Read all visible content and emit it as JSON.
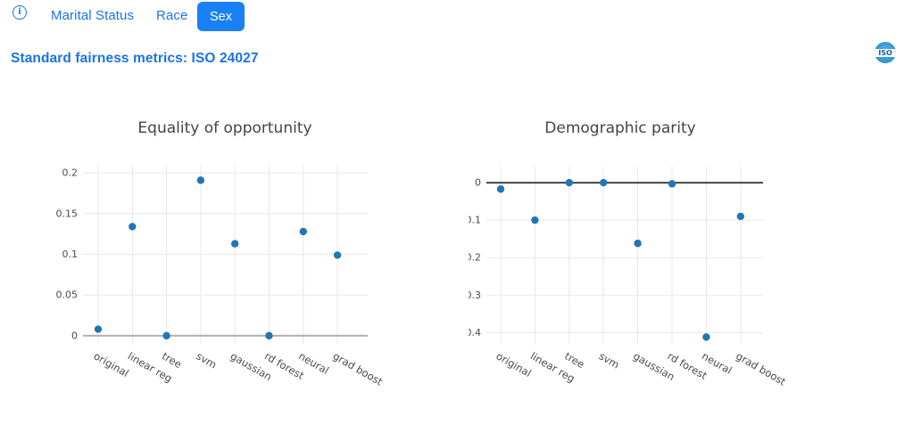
{
  "header": {
    "info_icon_glyph": "i",
    "tabs": [
      {
        "label": "Marital Status",
        "active": false
      },
      {
        "label": "Race",
        "active": false
      },
      {
        "label": "Sex",
        "active": true
      }
    ],
    "subtitle": "Standard fairness metrics: ISO 24027",
    "iso_logo": {
      "text": "ISO"
    }
  },
  "colors": {
    "accent_blue": "#1a73e8",
    "active_tab_bg": "#1a80f5",
    "marker": "#1f77b4",
    "grid": "#e8e8e8",
    "tick_label": "#4a4a4a",
    "title": "#444444"
  },
  "chart_data": [
    {
      "type": "scatter",
      "title": "Equality of opportunity",
      "categories": [
        "original",
        "linear reg",
        "tree",
        "svm",
        "gaussian",
        "rd forest",
        "neural",
        "grad boost"
      ],
      "values": [
        0.008,
        0.134,
        0.0,
        0.191,
        0.113,
        0.0,
        0.128,
        0.099
      ],
      "xlabel": "",
      "ylabel": "",
      "ylim": [
        -0.01,
        0.21
      ],
      "yticks": [
        {
          "v": 0,
          "label": "0"
        },
        {
          "v": 0.05,
          "label": "0.05"
        },
        {
          "v": 0.1,
          "label": "0.1"
        },
        {
          "v": 0.15,
          "label": "0.15"
        },
        {
          "v": 0.2,
          "label": "0.2"
        }
      ],
      "grid": true,
      "legend": false,
      "zeroline_color": "#b0b0b0"
    },
    {
      "type": "scatter",
      "title": "Demographic parity",
      "categories": [
        "original",
        "linear reg",
        "tree",
        "svm",
        "gaussian",
        "rd forest",
        "neural",
        "grad boost"
      ],
      "values": [
        -0.017,
        -0.1,
        0.0,
        0.0,
        -0.162,
        -0.003,
        -0.412,
        -0.09
      ],
      "xlabel": "",
      "ylabel": "",
      "ylim": [
        -0.43,
        0.043
      ],
      "yticks": [
        {
          "v": 0,
          "label": "0"
        },
        {
          "v": -0.1,
          "label": "−0.1"
        },
        {
          "v": -0.2,
          "label": "−0.2"
        },
        {
          "v": -0.3,
          "label": "−0.3"
        },
        {
          "v": -0.4,
          "label": "−0.4"
        }
      ],
      "grid": true,
      "legend": false,
      "zeroline_color": "#444444"
    }
  ]
}
